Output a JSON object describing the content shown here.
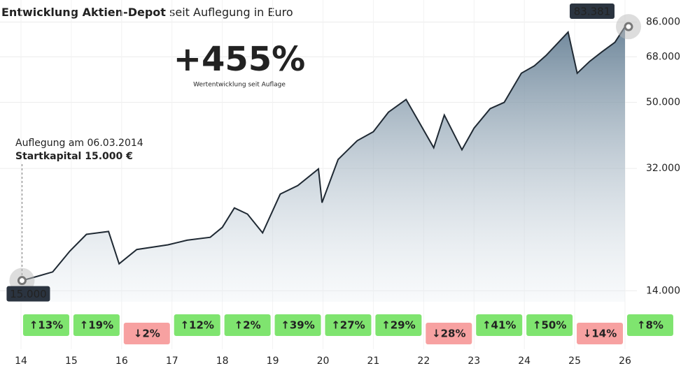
{
  "chart_data": {
    "type": "line",
    "title": "Entwicklung Aktien-Depot",
    "subtitle": "seit Auflegung in Euro",
    "log_scale": true,
    "grid": true,
    "xlim": [
      14,
      26
    ],
    "xticks": [
      14,
      15,
      16,
      17,
      18,
      19,
      20,
      21,
      22,
      23,
      24,
      25,
      26
    ],
    "ylim": [
      13000,
      90000
    ],
    "yticks": [
      {
        "value": 14000,
        "label": "14.000"
      },
      {
        "value": 32000,
        "label": "32.000"
      },
      {
        "value": 50000,
        "label": "50.000"
      },
      {
        "value": 68000,
        "label": "68.000"
      },
      {
        "value": 86000,
        "label": "86.000"
      }
    ],
    "series": [
      {
        "name": "Depot",
        "color": "#1f2933",
        "x": [
          14.02,
          14.3,
          14.63,
          14.97,
          15.3,
          15.74,
          15.95,
          16.3,
          16.92,
          17.3,
          17.76,
          18.0,
          18.24,
          18.5,
          18.8,
          19.15,
          19.5,
          19.91,
          19.98,
          20.3,
          20.68,
          21.0,
          21.3,
          21.65,
          21.9,
          22.2,
          22.41,
          22.76,
          23.0,
          23.32,
          23.6,
          23.94,
          24.2,
          24.43,
          24.87,
          25.05,
          25.3,
          25.54,
          25.8,
          26.0
        ],
        "values": [
          15000,
          15400,
          15900,
          18300,
          20500,
          20900,
          16800,
          18500,
          19100,
          19700,
          20100,
          21500,
          24500,
          23500,
          20700,
          26900,
          28500,
          31900,
          25400,
          34000,
          38600,
          41000,
          46800,
          51000,
          44000,
          36800,
          45900,
          36300,
          42000,
          47900,
          50000,
          60900,
          64000,
          68600,
          80400,
          60900,
          66000,
          70300,
          75000,
          83381
        ]
      }
    ],
    "returns": {
      "categories": [
        14,
        15,
        16,
        17,
        18,
        19,
        20,
        21,
        22,
        23,
        24,
        25,
        26
      ],
      "values": [
        13,
        19,
        -2,
        12,
        2,
        39,
        27,
        29,
        -28,
        41,
        50,
        -14,
        8
      ],
      "value_labels": [
        "↑13%",
        "↑19%",
        "↓2%",
        "↑12%",
        "↑2%",
        "↑39%",
        "↑27%",
        "↑29%",
        "↓28%",
        "↑41%",
        "↑50%",
        "↓14%",
        "↑8%"
      ]
    },
    "start_note": "Auflegung am 06.03.2014",
    "start_capital": "Startkapital 15.000 €",
    "start_label": {
      "value": 15000,
      "label": "15.000"
    },
    "end_label": {
      "value": 83381,
      "label": "83.381"
    },
    "performance": {
      "value": 455,
      "label": "+455%"
    },
    "performance_note": "Wertentwicklung seit Auflage"
  }
}
